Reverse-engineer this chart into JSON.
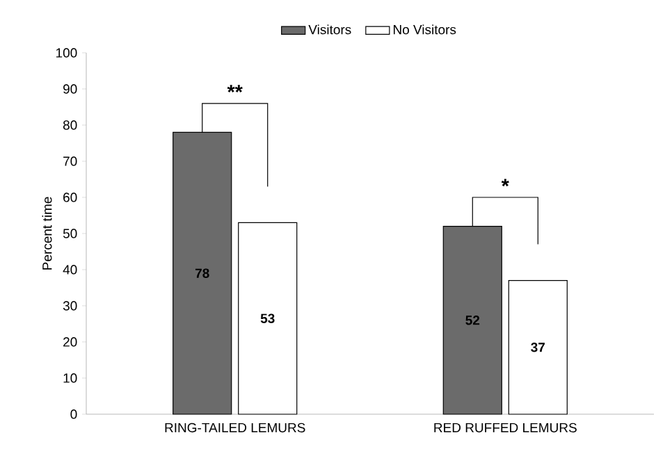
{
  "chart_data": {
    "type": "bar",
    "ylabel": "Percent time",
    "categories": [
      "RING-TAILED LEMURS",
      "RED RUFFED LEMURS"
    ],
    "series": [
      {
        "name": "Visitors",
        "color": "#6b6b6b",
        "values": [
          78,
          52
        ]
      },
      {
        "name": "No Visitors",
        "color": "#ffffff",
        "values": [
          53,
          37
        ]
      }
    ],
    "ylim": [
      0,
      100
    ],
    "yticks": [
      0,
      10,
      20,
      30,
      40,
      50,
      60,
      70,
      80,
      90,
      100
    ],
    "data_labels": true,
    "legend": "top",
    "grid": false,
    "annotations": [
      "**",
      "*"
    ]
  }
}
